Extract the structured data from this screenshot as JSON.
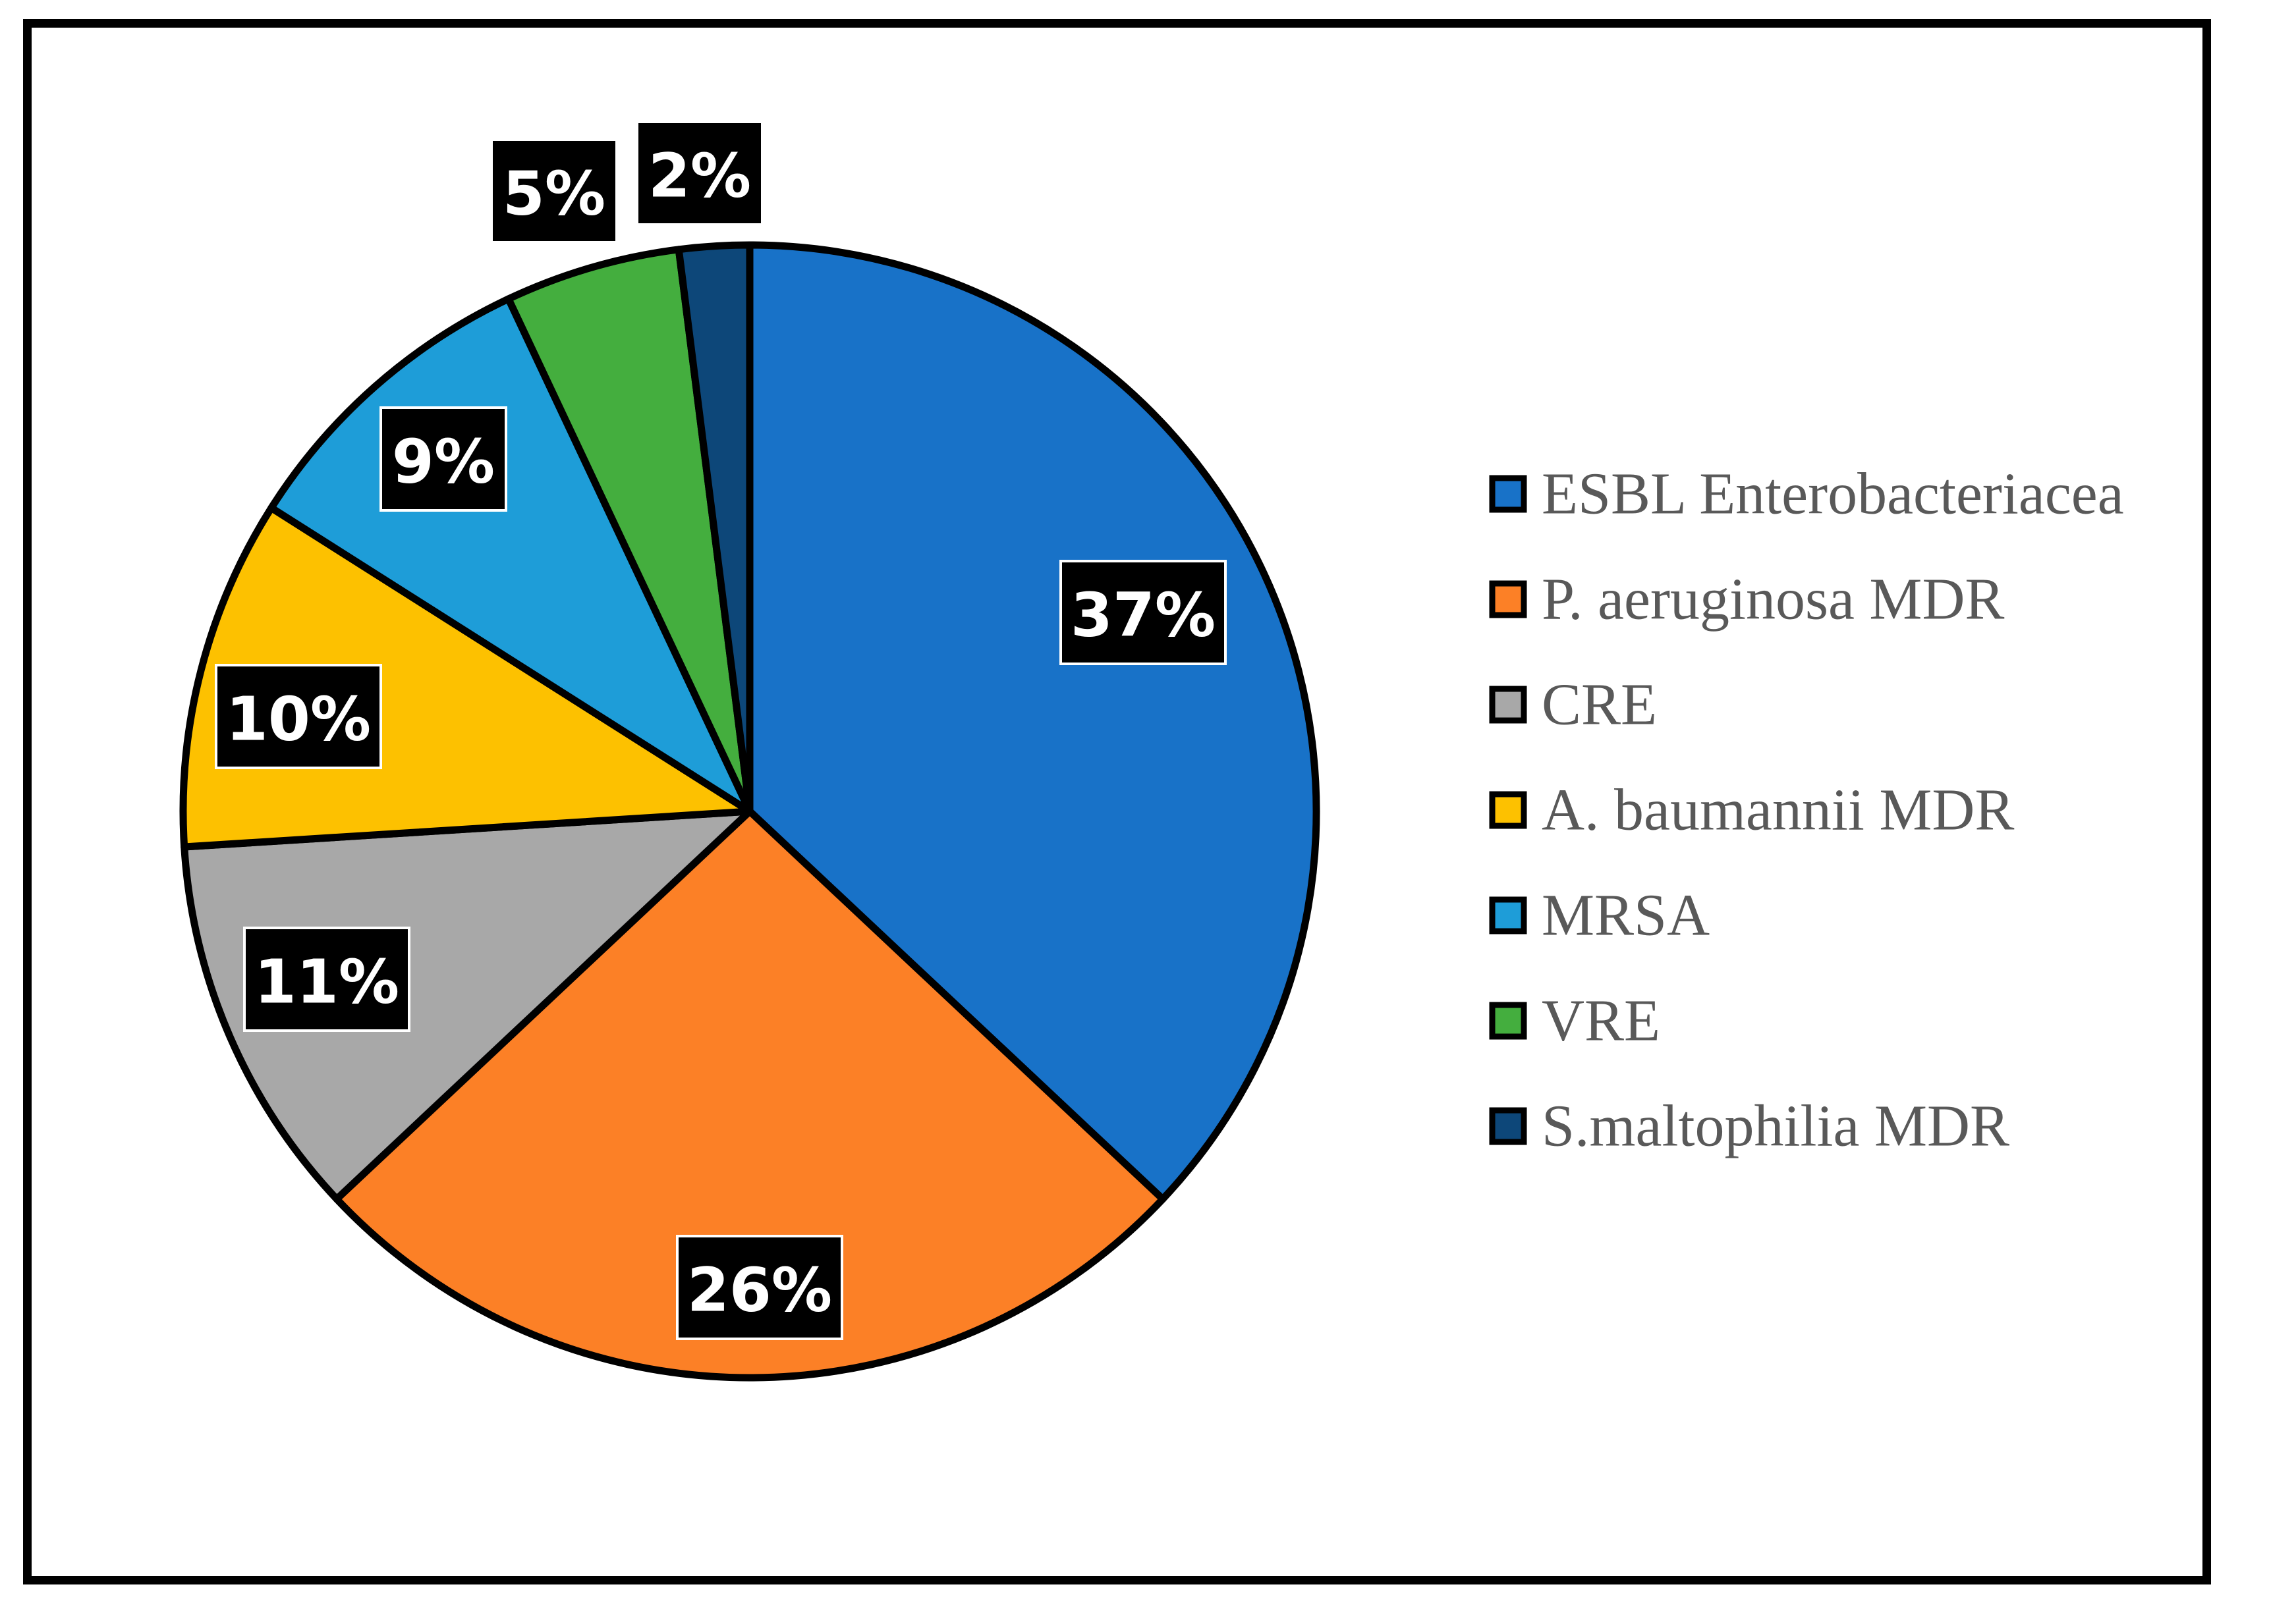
{
  "chart_data": {
    "type": "pie",
    "title": "",
    "categories": [
      "ESBL Enterobacteriacea",
      "P. aeruginosa MDR",
      "CRE",
      "A. baumannii MDR",
      "MRSA",
      "VRE",
      "S.maltophilia MDR"
    ],
    "values": [
      37,
      26,
      11,
      10,
      9,
      5,
      2
    ],
    "data_labels": [
      "37%",
      "26%",
      "11%",
      "10%",
      "9%",
      "5%",
      "2%"
    ],
    "colors": [
      "#1872C8",
      "#FC8026",
      "#A8A8A8",
      "#FDC100",
      "#1E9DD8",
      "#44AE3E",
      "#0D4779"
    ],
    "legend_position": "right"
  }
}
